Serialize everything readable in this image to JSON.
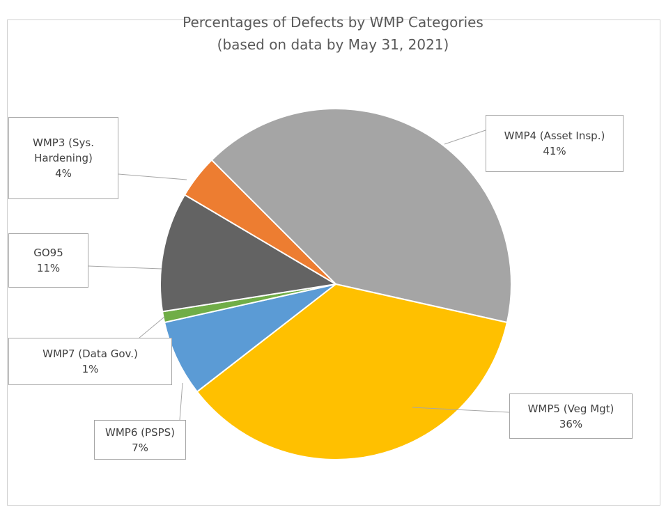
{
  "chart_data": {
    "type": "pie",
    "title": "Percentages of Defects by WMP Categories",
    "subtitle": "(based on data by May 31, 2021)",
    "categories": [
      "WMP4 (Asset Insp.)",
      "WMP5 (Veg Mgt)",
      "WMP6 (PSPS)",
      "WMP7 (Data Gov.)",
      "GO95",
      "WMP3 (Sys. Hardening)"
    ],
    "values": [
      41,
      36,
      7,
      1,
      11,
      4
    ],
    "value_labels": [
      "41%",
      "36%",
      "7%",
      "1%",
      "11%",
      "4%"
    ],
    "colors": [
      "#a5a5a5",
      "#ffc000",
      "#5b9bd5",
      "#70ad47",
      "#636363",
      "#ed7d31"
    ]
  }
}
